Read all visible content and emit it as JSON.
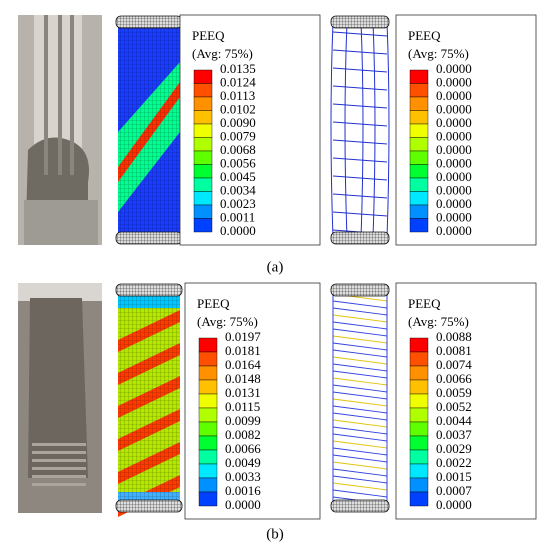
{
  "panels": [
    {
      "label": "(a)",
      "legends": [
        {
          "title": "PEEQ",
          "subtitle": "(Avg: 75%)",
          "levels": [
            "0.0135",
            "0.0124",
            "0.0113",
            "0.0102",
            "0.0090",
            "0.0079",
            "0.0068",
            "0.0056",
            "0.0045",
            "0.0034",
            "0.0023",
            "0.0011",
            "0.0000"
          ]
        },
        {
          "title": "PEEQ",
          "subtitle": "(Avg: 75%)",
          "levels": [
            "0.0000",
            "0.0000",
            "0.0000",
            "0.0000",
            "0.0000",
            "0.0000",
            "0.0000",
            "0.0000",
            "0.0000",
            "0.0000",
            "0.0000",
            "0.0000",
            "0.0000"
          ]
        }
      ]
    },
    {
      "label": "(b)",
      "legends": [
        {
          "title": "PEEQ",
          "subtitle": "(Avg: 75%)",
          "levels": [
            "0.0197",
            "0.0181",
            "0.0164",
            "0.0148",
            "0.0131",
            "0.0115",
            "0.0099",
            "0.0082",
            "0.0066",
            "0.0049",
            "0.0033",
            "0.0016",
            "0.0000"
          ]
        },
        {
          "title": "PEEQ",
          "subtitle": "(Avg: 75%)",
          "levels": [
            "0.0088",
            "0.0081",
            "0.0074",
            "0.0066",
            "0.0059",
            "0.0052",
            "0.0044",
            "0.0037",
            "0.0029",
            "0.0022",
            "0.0015",
            "0.0007",
            "0.0000"
          ]
        }
      ]
    }
  ]
}
